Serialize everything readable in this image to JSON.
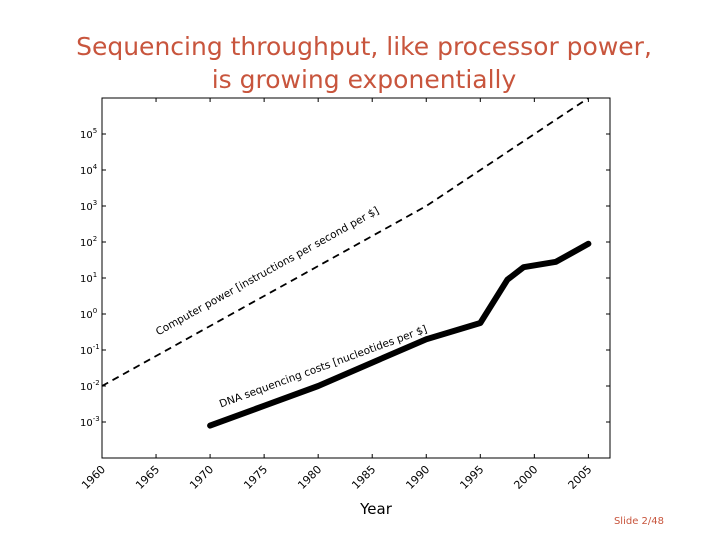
{
  "slide": {
    "title_line1": "Sequencing throughput, like processor power,",
    "title_line2": "is growing exponentially",
    "number": "Slide 2/48"
  },
  "chart_data": {
    "type": "line",
    "title": "",
    "xlabel": "Year",
    "ylabel": "",
    "xlim": [
      1960,
      2007
    ],
    "ylim_log10": [
      -4.0,
      6.0
    ],
    "y_scale": "log",
    "grid": false,
    "x_ticks": [
      1960,
      1965,
      1970,
      1975,
      1980,
      1985,
      1990,
      1995,
      2000,
      2005
    ],
    "x_tick_labels": [
      "1960",
      "1965",
      "1970",
      "1975",
      "1980",
      "1985",
      "1990",
      "1995",
      "2000",
      "2005"
    ],
    "y_ticks": [
      {
        "exp": -3,
        "label": "10",
        "sup": "-3"
      },
      {
        "exp": -2,
        "label": "10",
        "sup": "-2"
      },
      {
        "exp": -1,
        "label": "10",
        "sup": "-1"
      },
      {
        "exp": 0,
        "label": "10",
        "sup": "0"
      },
      {
        "exp": 1,
        "label": "10",
        "sup": "1"
      },
      {
        "exp": 2,
        "label": "10",
        "sup": "2"
      },
      {
        "exp": 3,
        "label": "10",
        "sup": "3"
      },
      {
        "exp": 4,
        "label": "10",
        "sup": "4"
      },
      {
        "exp": 5,
        "label": "10",
        "sup": "5"
      }
    ],
    "series": [
      {
        "name": "Computer power [instructions per second per $]",
        "style": "dashed",
        "color": "#000000",
        "label_anchor": {
          "x": 1965.2,
          "y_log10": -0.6
        },
        "x": [
          1960,
          1990,
          2005
        ],
        "y_log10": [
          -2.0,
          3.0,
          6.0
        ]
      },
      {
        "name": "DNA sequencing costs [nucleotides per $]",
        "style": "solid",
        "color": "#000000",
        "label_anchor": {
          "x": 1971,
          "y_log10": -2.6
        },
        "x": [
          1970,
          1975,
          1980,
          1985,
          1990,
          1995,
          1997.5,
          1999,
          2002,
          2005
        ],
        "y_log10": [
          -3.1,
          -2.55,
          -2.0,
          -1.35,
          -0.7,
          -0.25,
          0.95,
          1.3,
          1.45,
          1.95
        ]
      }
    ]
  }
}
